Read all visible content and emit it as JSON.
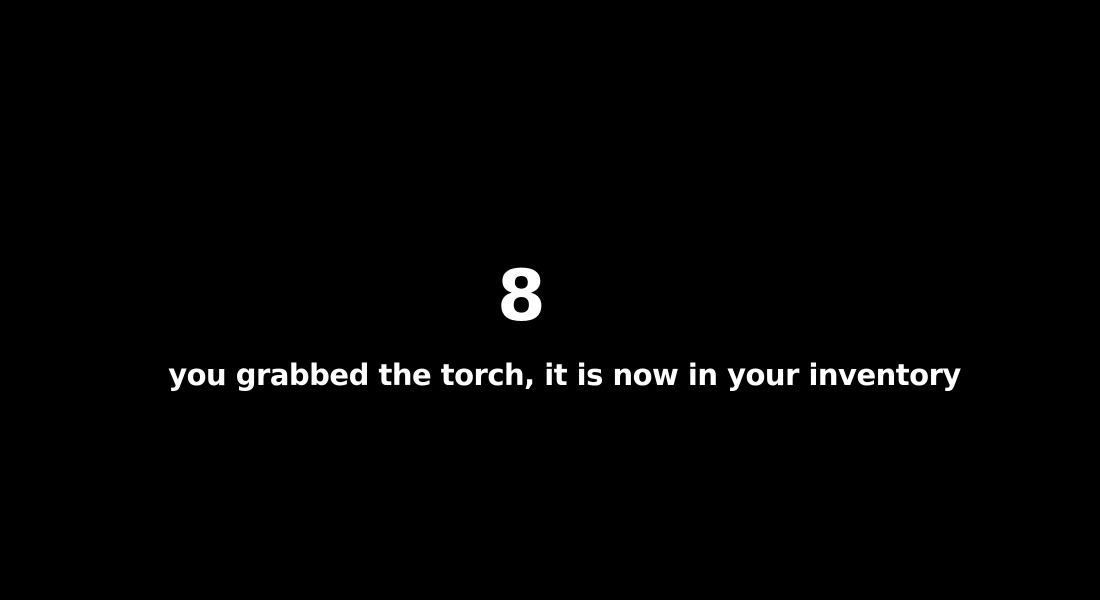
{
  "screen": {
    "counter": "8",
    "message": "you grabbed the torch, it is now in your inventory",
    "background_color": "#000000",
    "text_color": "#ffffff"
  }
}
